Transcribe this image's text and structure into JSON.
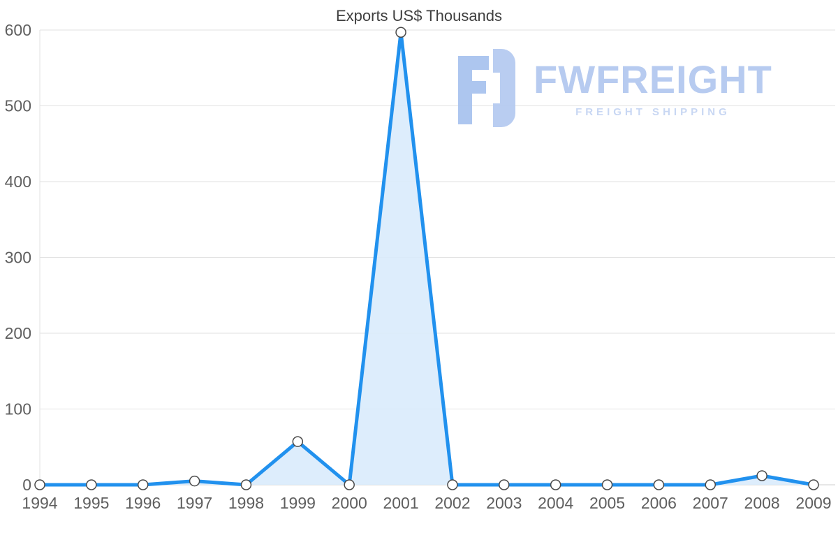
{
  "chart_data": {
    "type": "area",
    "title": "Exports US$ Thousands",
    "categories": [
      "1994",
      "1995",
      "1996",
      "1997",
      "1998",
      "1999",
      "2000",
      "2001",
      "2002",
      "2003",
      "2004",
      "2005",
      "2006",
      "2007",
      "2008",
      "2009"
    ],
    "values": [
      0,
      0,
      0,
      5,
      0,
      57,
      0,
      597,
      0,
      0,
      0,
      0,
      0,
      0,
      12,
      0
    ],
    "xlabel": "",
    "ylabel": "",
    "ylim": [
      0,
      600
    ],
    "yticks": [
      0,
      100,
      200,
      300,
      400,
      500,
      600
    ],
    "grid": true,
    "legend": "none",
    "line_color": "#2191ee",
    "fill_color": "#d9ebfc",
    "marker_fill": "#ffffff",
    "marker_stroke": "#4a4a4a",
    "grid_color": "#e2e2e2",
    "axis_label_color": "#5f5f5f"
  },
  "watermark": {
    "title": "FWFREIGHT",
    "subtitle": "FREIGHT SHIPPING",
    "color": "#b4c9f0"
  }
}
